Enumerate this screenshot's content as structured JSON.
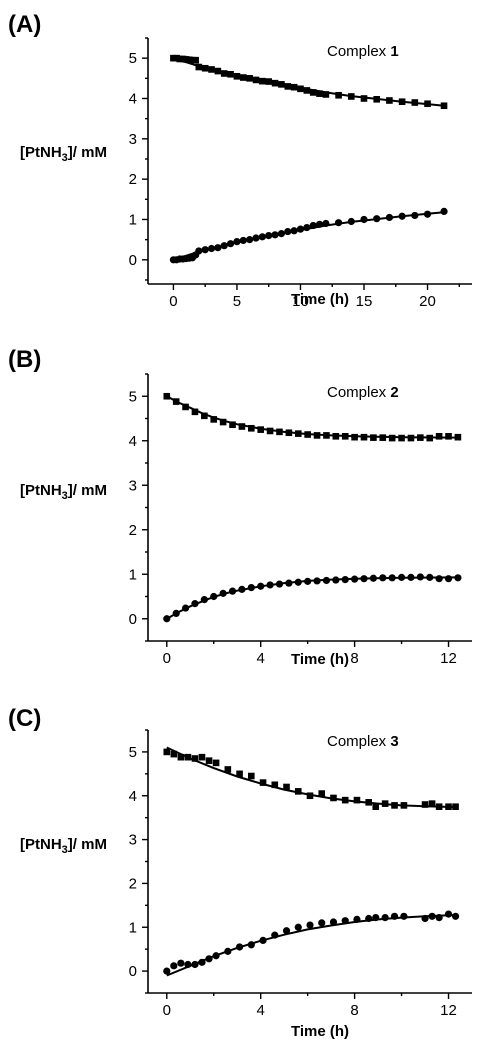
{
  "chart_data": [
    {
      "type": "scatter",
      "panel_label": "(A)",
      "annotation": {
        "prefix": "Complex ",
        "bold": "1"
      },
      "xlabel": "Time (h)",
      "ylabel": {
        "main": "[PtNH",
        "sub": "3",
        "tail": "]/ mM"
      },
      "xlim": [
        -2,
        23.5
      ],
      "ylim": [
        -0.6,
        5.5
      ],
      "xticks": [
        0,
        5,
        10,
        15,
        20
      ],
      "yticks": [
        0,
        1,
        2,
        3,
        4,
        5
      ],
      "series": [
        {
          "marker": "square",
          "x": [
            0,
            0.25,
            0.5,
            0.75,
            1.0,
            1.25,
            1.5,
            1.75,
            2.0,
            2.5,
            3.0,
            3.5,
            4.0,
            4.5,
            5.0,
            5.5,
            6.0,
            6.5,
            7.0,
            7.5,
            8.0,
            8.5,
            9.0,
            9.5,
            10.0,
            10.5,
            11.0,
            11.5,
            12.0,
            13.0,
            14.0,
            15.0,
            16.0,
            17.0,
            18.0,
            19.0,
            20.0,
            21.3
          ],
          "y": [
            5.0,
            5.0,
            4.98,
            4.98,
            4.97,
            4.96,
            4.95,
            4.95,
            4.78,
            4.75,
            4.72,
            4.68,
            4.62,
            4.6,
            4.55,
            4.52,
            4.5,
            4.46,
            4.43,
            4.42,
            4.38,
            4.35,
            4.3,
            4.28,
            4.24,
            4.2,
            4.15,
            4.12,
            4.1,
            4.08,
            4.05,
            4.0,
            3.98,
            3.95,
            3.92,
            3.9,
            3.87,
            3.82
          ]
        },
        {
          "marker": "circle",
          "x": [
            0,
            0.25,
            0.5,
            0.75,
            1.0,
            1.25,
            1.5,
            1.75,
            2.0,
            2.5,
            3.0,
            3.5,
            4.0,
            4.5,
            5.0,
            5.5,
            6.0,
            6.5,
            7.0,
            7.5,
            8.0,
            8.5,
            9.0,
            9.5,
            10.0,
            10.5,
            11.0,
            11.5,
            12.0,
            13.0,
            14.0,
            15.0,
            16.0,
            17.0,
            18.0,
            19.0,
            20.0,
            21.3
          ],
          "y": [
            0,
            0,
            0.02,
            0.02,
            0.03,
            0.04,
            0.05,
            0.12,
            0.22,
            0.25,
            0.28,
            0.3,
            0.35,
            0.4,
            0.45,
            0.48,
            0.5,
            0.54,
            0.57,
            0.6,
            0.62,
            0.65,
            0.7,
            0.72,
            0.76,
            0.8,
            0.85,
            0.88,
            0.9,
            0.92,
            0.95,
            1.0,
            1.02,
            1.05,
            1.08,
            1.1,
            1.13,
            1.2
          ]
        }
      ],
      "fits": [
        {
          "x": [
            0,
            2,
            4,
            6,
            8,
            10,
            12,
            14,
            16,
            18,
            20,
            21.3
          ],
          "y": [
            5.0,
            4.8,
            4.64,
            4.5,
            4.38,
            4.26,
            4.15,
            4.06,
            3.99,
            3.92,
            3.86,
            3.82
          ]
        },
        {
          "x": [
            0,
            2,
            4,
            6,
            8,
            10,
            12,
            14,
            16,
            18,
            20,
            21.3
          ],
          "y": [
            0.0,
            0.2,
            0.36,
            0.5,
            0.62,
            0.74,
            0.85,
            0.94,
            1.01,
            1.08,
            1.14,
            1.18
          ]
        }
      ]
    },
    {
      "type": "scatter",
      "panel_label": "(B)",
      "annotation": {
        "prefix": "Complex ",
        "bold": "2"
      },
      "xlabel": "Time (h)",
      "ylabel": {
        "main": "[PtNH",
        "sub": "3",
        "tail": "]/ mM"
      },
      "xlim": [
        -0.8,
        13
      ],
      "ylim": [
        -0.5,
        5.5
      ],
      "xticks": [
        0,
        4,
        8,
        12
      ],
      "yticks": [
        0,
        1,
        2,
        3,
        4,
        5
      ],
      "series": [
        {
          "marker": "square",
          "x": [
            0,
            0.4,
            0.8,
            1.2,
            1.6,
            2.0,
            2.4,
            2.8,
            3.2,
            3.6,
            4.0,
            4.4,
            4.8,
            5.2,
            5.6,
            6.0,
            6.4,
            6.8,
            7.2,
            7.6,
            8.0,
            8.4,
            8.8,
            9.2,
            9.6,
            10.0,
            10.4,
            10.8,
            11.2,
            11.6,
            12.0,
            12.4
          ],
          "y": [
            5.0,
            4.88,
            4.76,
            4.65,
            4.56,
            4.48,
            4.42,
            4.36,
            4.32,
            4.28,
            4.25,
            4.22,
            4.2,
            4.18,
            4.16,
            4.14,
            4.12,
            4.12,
            4.1,
            4.1,
            4.08,
            4.08,
            4.07,
            4.07,
            4.06,
            4.06,
            4.06,
            4.07,
            4.06,
            4.1,
            4.1,
            4.08
          ]
        },
        {
          "marker": "circle",
          "x": [
            0,
            0.4,
            0.8,
            1.2,
            1.6,
            2.0,
            2.4,
            2.8,
            3.2,
            3.6,
            4.0,
            4.4,
            4.8,
            5.2,
            5.6,
            6.0,
            6.4,
            6.8,
            7.2,
            7.6,
            8.0,
            8.4,
            8.8,
            9.2,
            9.6,
            10.0,
            10.4,
            10.8,
            11.2,
            11.6,
            12.0,
            12.4
          ],
          "y": [
            0,
            0.12,
            0.24,
            0.34,
            0.43,
            0.5,
            0.57,
            0.62,
            0.66,
            0.7,
            0.73,
            0.76,
            0.78,
            0.8,
            0.82,
            0.84,
            0.85,
            0.86,
            0.87,
            0.88,
            0.89,
            0.9,
            0.91,
            0.92,
            0.92,
            0.93,
            0.93,
            0.94,
            0.93,
            0.9,
            0.9,
            0.92
          ]
        }
      ],
      "fits": [
        {
          "x": [
            0,
            0.5,
            1,
            1.5,
            2,
            2.5,
            3,
            4,
            5,
            6,
            7,
            8,
            10,
            12.4
          ],
          "y": [
            5.0,
            4.86,
            4.74,
            4.62,
            4.52,
            4.44,
            4.37,
            4.27,
            4.2,
            4.15,
            4.12,
            4.1,
            4.08,
            4.07
          ]
        },
        {
          "x": [
            0,
            0.5,
            1,
            1.5,
            2,
            2.5,
            3,
            4,
            5,
            6,
            7,
            8,
            10,
            12.4
          ],
          "y": [
            0.0,
            0.15,
            0.28,
            0.39,
            0.49,
            0.57,
            0.63,
            0.73,
            0.8,
            0.85,
            0.88,
            0.9,
            0.92,
            0.93
          ]
        }
      ]
    },
    {
      "type": "scatter",
      "panel_label": "(C)",
      "annotation": {
        "prefix": "Complex ",
        "bold": "3"
      },
      "xlabel": "Time (h)",
      "ylabel": {
        "main": "[PtNH",
        "sub": "3",
        "tail": "]/ mM"
      },
      "xlim": [
        -0.8,
        13
      ],
      "ylim": [
        -0.5,
        5.5
      ],
      "xticks": [
        0,
        4,
        8,
        12
      ],
      "yticks": [
        0,
        1,
        2,
        3,
        4,
        5
      ],
      "series": [
        {
          "marker": "square",
          "x": [
            0,
            0.3,
            0.6,
            0.9,
            1.2,
            1.5,
            1.8,
            2.1,
            2.6,
            3.1,
            3.6,
            4.1,
            4.6,
            5.1,
            5.6,
            6.1,
            6.6,
            7.1,
            7.6,
            8.1,
            8.6,
            8.9,
            9.3,
            9.7,
            10.1,
            11.0,
            11.3,
            11.6,
            12.0,
            12.3
          ],
          "y": [
            5.0,
            4.95,
            4.88,
            4.88,
            4.85,
            4.88,
            4.8,
            4.75,
            4.6,
            4.5,
            4.45,
            4.3,
            4.25,
            4.2,
            4.1,
            4.0,
            4.05,
            3.95,
            3.9,
            3.9,
            3.85,
            3.75,
            3.82,
            3.78,
            3.78,
            3.8,
            3.82,
            3.75,
            3.75,
            3.75
          ]
        },
        {
          "marker": "circle",
          "x": [
            0,
            0.3,
            0.6,
            0.9,
            1.2,
            1.5,
            1.8,
            2.1,
            2.6,
            3.1,
            3.6,
            4.1,
            4.6,
            5.1,
            5.6,
            6.1,
            6.6,
            7.1,
            7.6,
            8.1,
            8.6,
            8.9,
            9.3,
            9.7,
            10.1,
            11.0,
            11.3,
            11.6,
            12.0,
            12.3
          ],
          "y": [
            0,
            0.12,
            0.18,
            0.15,
            0.15,
            0.2,
            0.28,
            0.35,
            0.45,
            0.55,
            0.6,
            0.7,
            0.82,
            0.92,
            1.0,
            1.05,
            1.1,
            1.12,
            1.15,
            1.18,
            1.2,
            1.22,
            1.22,
            1.25,
            1.25,
            1.2,
            1.25,
            1.22,
            1.3,
            1.25
          ]
        }
      ],
      "fits": [
        {
          "x": [
            0,
            1,
            2,
            3,
            4,
            5,
            6,
            7,
            8,
            9,
            10,
            11,
            12.3
          ],
          "y": [
            5.1,
            4.85,
            4.63,
            4.44,
            4.28,
            4.14,
            4.03,
            3.94,
            3.87,
            3.82,
            3.78,
            3.76,
            3.74
          ]
        },
        {
          "x": [
            0,
            1,
            2,
            3,
            4,
            5,
            6,
            7,
            8,
            9,
            10,
            11,
            12.3
          ],
          "y": [
            -0.1,
            0.12,
            0.34,
            0.53,
            0.69,
            0.83,
            0.95,
            1.04,
            1.12,
            1.18,
            1.22,
            1.25,
            1.28
          ]
        }
      ]
    }
  ]
}
